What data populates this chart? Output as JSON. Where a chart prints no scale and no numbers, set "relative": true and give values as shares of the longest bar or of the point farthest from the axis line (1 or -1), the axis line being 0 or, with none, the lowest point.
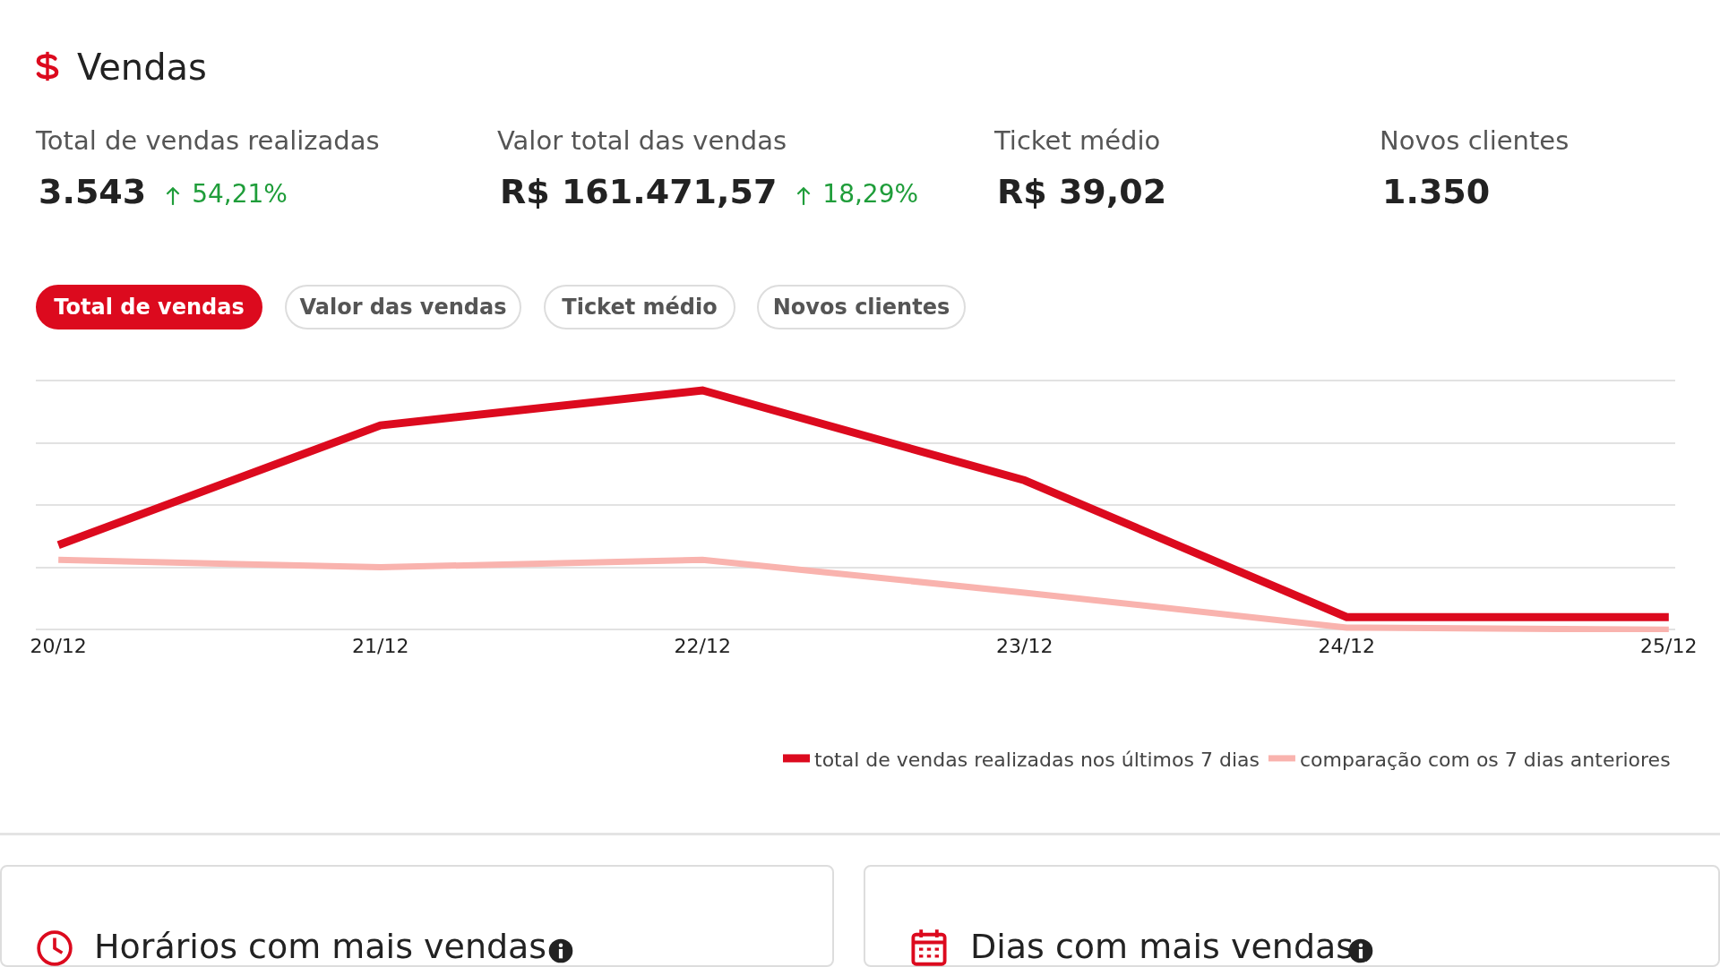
{
  "chart_data": {
    "type": "line",
    "title": "Vendas",
    "relative": true,
    "categories": [
      "20/12",
      "21/12",
      "22/12",
      "23/12",
      "24/12",
      "25/12"
    ],
    "series": [
      {
        "name": "total de vendas realizadas nos últimos 7 dias",
        "color": "#dc0a1e",
        "values": [
          0.354,
          0.854,
          1,
          0.624,
          0.053,
          0.053
        ]
      },
      {
        "name": "comparação com os 7 dias anteriores",
        "color": "#f9b3ae",
        "values": [
          0.292,
          0.261,
          0.292,
          0.155,
          0.009,
          0
        ]
      }
    ],
    "grid": "y",
    "legend": "bottom right",
    "marker": "none",
    "line_style": "solid",
    "annotations": [
      "Total de vendas realizadas",
      "3.543",
      "54,21%",
      "Valor total das vendas",
      "R$ 161.471,57",
      "18,29%",
      "Ticket médio",
      "R$ 39,02",
      "Novos clientes",
      "1.350",
      "Total de vendas",
      "Valor das vendas",
      "Ticket médio",
      "Novos clientes",
      "Horários com mais vendas",
      "Dias com mais vendas"
    ]
  }
}
